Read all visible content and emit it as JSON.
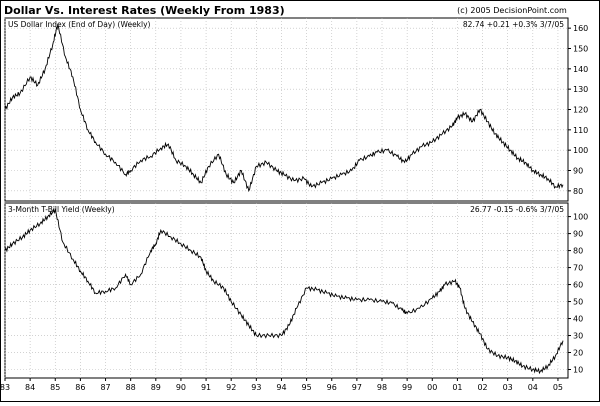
{
  "header": {
    "title": "Dollar Vs. Interest Rates (Weekly From 1983)",
    "copyright": "(c) 2005 DecisionPoint.com"
  },
  "chart_data": [
    {
      "type": "line",
      "title": "US Dollar Index (End of Day) (Weekly)",
      "readout": "82.74  +0.21  +0.3%  3/7/05",
      "ylim": [
        75,
        165
      ],
      "yticks": [
        80,
        90,
        100,
        110,
        120,
        130,
        140,
        150,
        160
      ],
      "grid": true,
      "color": "#000000",
      "series": [
        {
          "x": [
            1983.0,
            1983.3,
            1983.6,
            1984.0,
            1984.3,
            1984.6,
            1984.9,
            1985.1,
            1985.4,
            1985.7,
            1986.0,
            1986.3,
            1986.6,
            1987.0,
            1987.4,
            1987.8,
            1988.0,
            1988.4,
            1988.8,
            1989.2,
            1989.5,
            1989.8,
            1990.2,
            1990.5,
            1990.8,
            1991.1,
            1991.5,
            1991.8,
            1992.1,
            1992.4,
            1992.7,
            1993.0,
            1993.4,
            1993.8,
            1994.1,
            1994.5,
            1994.9,
            1995.2,
            1995.6,
            1996.0,
            1996.4,
            1996.8,
            1997.1,
            1997.5,
            1997.8,
            1998.2,
            1998.6,
            1998.9,
            1999.2,
            1999.6,
            2000.0,
            2000.4,
            2000.8,
            2001.0,
            2001.3,
            2001.6,
            2001.9,
            2002.2,
            2002.5,
            2002.8,
            2003.1,
            2003.4,
            2003.7,
            2004.0,
            2004.3,
            2004.6,
            2004.9,
            2005.2
          ],
          "y": [
            120,
            126,
            128,
            136,
            132,
            140,
            152,
            162,
            146,
            136,
            120,
            110,
            104,
            98,
            94,
            88,
            90,
            95,
            97,
            101,
            103,
            95,
            92,
            88,
            84,
            92,
            98,
            88,
            84,
            90,
            80,
            92,
            94,
            90,
            88,
            85,
            86,
            82,
            84,
            86,
            88,
            90,
            95,
            97,
            99,
            100,
            97,
            94,
            98,
            102,
            104,
            108,
            112,
            116,
            118,
            114,
            120,
            114,
            108,
            104,
            100,
            96,
            94,
            90,
            88,
            86,
            82,
            83
          ]
        }
      ]
    },
    {
      "type": "line",
      "title": "3-Month T-Bill Yield (Weekly)",
      "readout": "26.77  -0.15  -0.6%  3/7/05",
      "ylim": [
        5,
        108
      ],
      "yticks": [
        10,
        20,
        30,
        40,
        50,
        60,
        70,
        80,
        90,
        100
      ],
      "grid": true,
      "color": "#000000",
      "series": [
        {
          "x": [
            1983.0,
            1983.3,
            1983.7,
            1984.0,
            1984.4,
            1984.7,
            1985.0,
            1985.3,
            1985.7,
            1986.0,
            1986.3,
            1986.6,
            1987.0,
            1987.4,
            1987.8,
            1988.0,
            1988.4,
            1988.8,
            1989.0,
            1989.2,
            1989.6,
            1990.0,
            1990.4,
            1990.8,
            1991.0,
            1991.3,
            1991.7,
            1992.0,
            1992.4,
            1992.7,
            1993.0,
            1993.5,
            1994.0,
            1994.3,
            1994.6,
            1995.0,
            1995.4,
            1995.8,
            1996.2,
            1996.6,
            1997.0,
            1997.5,
            1998.0,
            1998.4,
            1998.8,
            1999.0,
            1999.5,
            2000.0,
            2000.3,
            2000.5,
            2000.9,
            2001.1,
            2001.3,
            2001.6,
            2001.9,
            2002.2,
            2002.6,
            2003.0,
            2003.3,
            2003.6,
            2004.0,
            2004.3,
            2004.6,
            2004.9,
            2005.2
          ],
          "y": [
            80,
            84,
            88,
            92,
            96,
            100,
            104,
            85,
            75,
            68,
            62,
            55,
            56,
            58,
            66,
            60,
            66,
            80,
            84,
            92,
            88,
            84,
            80,
            76,
            68,
            62,
            58,
            50,
            42,
            36,
            30,
            30,
            30,
            36,
            46,
            58,
            57,
            55,
            53,
            52,
            51,
            51,
            50,
            49,
            45,
            43,
            46,
            52,
            56,
            60,
            62,
            58,
            46,
            38,
            31,
            22,
            18,
            17,
            15,
            12,
            10,
            9,
            12,
            18,
            27
          ]
        }
      ]
    }
  ],
  "x_axis": {
    "xlim": [
      1983,
      2005.4
    ],
    "tick_labels": [
      "83",
      "84",
      "85",
      "86",
      "87",
      "88",
      "89",
      "90",
      "91",
      "92",
      "93",
      "94",
      "95",
      "96",
      "97",
      "98",
      "99",
      "00",
      "01",
      "02",
      "03",
      "04",
      "05"
    ],
    "tick_years": [
      1983,
      1984,
      1985,
      1986,
      1987,
      1988,
      1989,
      1990,
      1991,
      1992,
      1993,
      1994,
      1995,
      1996,
      1997,
      1998,
      1999,
      2000,
      2001,
      2002,
      2003,
      2004,
      2005
    ]
  }
}
